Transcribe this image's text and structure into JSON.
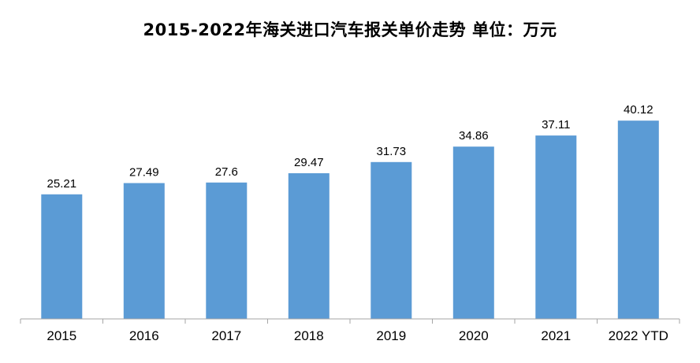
{
  "chart_data": {
    "type": "bar",
    "title": "2015-2022年海关进口汽车报关单价走势  单位：万元",
    "categories": [
      "2015",
      "2016",
      "2017",
      "2018",
      "2019",
      "2020",
      "2021",
      "2022 YTD"
    ],
    "values": [
      25.21,
      27.49,
      27.6,
      29.47,
      31.73,
      34.86,
      37.11,
      40.12
    ],
    "value_labels": [
      "25.21",
      "27.49",
      "27.6",
      "29.47",
      "31.73",
      "34.86",
      "37.11",
      "40.12"
    ],
    "xlabel": "",
    "ylabel": "",
    "ylim": [
      0,
      47
    ],
    "grid": false,
    "legend": "none",
    "bar_color": "#5B9BD5",
    "axis_color": "#A6A6A6"
  }
}
